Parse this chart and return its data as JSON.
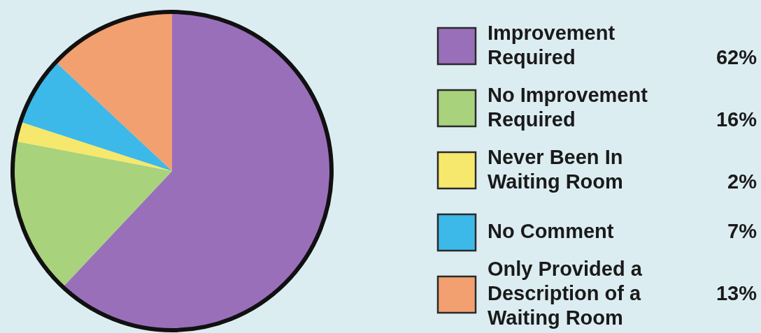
{
  "chart_data": {
    "type": "pie",
    "categories": [
      "Improvement Required",
      "No Improvement Required",
      "Never Been In Waiting Room",
      "No Comment",
      "Only Provided a Description of a Waiting Room"
    ],
    "values": [
      62,
      16,
      2,
      7,
      13
    ],
    "colors": [
      "#9a6fba",
      "#a8d27c",
      "#f6e86c",
      "#3cb9e8",
      "#f2a070"
    ],
    "value_labels": [
      "62%",
      "16%",
      "2%",
      "7%",
      "13%"
    ],
    "legend": "right"
  }
}
